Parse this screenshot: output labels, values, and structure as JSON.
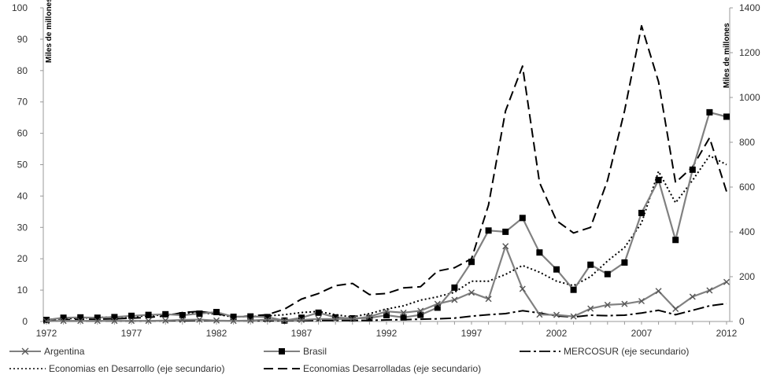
{
  "chart_data": {
    "type": "line",
    "y_left_label": "Miles de millones",
    "y_right_label": "Miles de millones",
    "y_left_ticks": [
      "0",
      "10",
      "20",
      "30",
      "40",
      "50",
      "60",
      "70",
      "80",
      "90",
      "100"
    ],
    "y_right_ticks": [
      "0",
      "200",
      "400",
      "600",
      "800",
      "1000",
      "1200",
      "1400"
    ],
    "x_ticks": [
      "1972",
      "1977",
      "1982",
      "1987",
      "1992",
      "1997",
      "2002",
      "2007",
      "2012"
    ],
    "ylim_left": [
      0,
      100
    ],
    "ylim_right": [
      0,
      1400
    ],
    "grid": false,
    "legend_position": "bottom",
    "x": [
      1972,
      1973,
      1974,
      1975,
      1976,
      1977,
      1978,
      1979,
      1980,
      1981,
      1982,
      1983,
      1984,
      1985,
      1986,
      1987,
      1988,
      1989,
      1990,
      1991,
      1992,
      1993,
      1994,
      1995,
      1996,
      1997,
      1998,
      1999,
      2000,
      2001,
      2002,
      2003,
      2004,
      2005,
      2006,
      2007,
      2008,
      2009,
      2010,
      2011,
      2012
    ],
    "series": [
      {
        "name": "Argentina",
        "axis": "left",
        "color": "#808080",
        "marker": "x",
        "values": [
          0.1,
          0.2,
          0.2,
          0.2,
          0.2,
          0.2,
          0.2,
          0.3,
          0.5,
          0.6,
          0.3,
          0.2,
          0.3,
          0.6,
          0.3,
          0.5,
          0.8,
          0.8,
          0.8,
          1.5,
          3.2,
          2.8,
          3.4,
          5.6,
          6.9,
          9.2,
          7.2,
          24.0,
          10.4,
          2.2,
          2.1,
          1.6,
          4.1,
          5.3,
          5.6,
          6.5,
          9.7,
          4.0,
          7.9,
          9.9,
          12.6
        ]
      },
      {
        "name": "Brasil",
        "axis": "left",
        "color": "#808080",
        "marker": "square",
        "values": [
          0.5,
          1.2,
          1.3,
          1.2,
          1.4,
          1.8,
          2.1,
          2.3,
          2.0,
          2.5,
          3.0,
          1.5,
          1.6,
          1.4,
          0.3,
          1.2,
          2.8,
          1.3,
          1.0,
          1.1,
          2.0,
          1.3,
          2.1,
          4.4,
          10.8,
          19.0,
          29.0,
          28.6,
          33.0,
          22.0,
          16.6,
          10.1,
          18.1,
          15.1,
          18.8,
          34.6,
          45.1,
          26.0,
          48.4,
          66.7,
          65.3
        ]
      },
      {
        "name": "MERCOSUR (eje secundario)",
        "axis": "right",
        "color": "#000000",
        "dash": "14,4,3,4",
        "values": [
          2,
          2,
          2,
          2,
          2,
          2,
          2,
          3,
          4,
          5,
          4,
          3,
          3,
          3,
          3,
          4,
          5,
          5,
          5,
          5,
          7,
          8,
          10,
          12,
          15,
          24,
          30,
          35,
          48,
          38,
          25,
          20,
          28,
          26,
          28,
          38,
          50,
          30,
          50,
          70,
          80
        ]
      },
      {
        "name": "Economias en Desarrollo (eje secundario)",
        "axis": "right",
        "color": "#000000",
        "dash": "2,3",
        "values": [
          10,
          12,
          15,
          18,
          20,
          22,
          25,
          30,
          35,
          40,
          32,
          20,
          22,
          25,
          30,
          40,
          45,
          30,
          20,
          35,
          55,
          70,
          95,
          110,
          130,
          180,
          180,
          210,
          250,
          220,
          180,
          160,
          200,
          270,
          330,
          440,
          670,
          530,
          630,
          740,
          700
        ]
      },
      {
        "name": "Economias Desarrolladas (eje secundario)",
        "axis": "right",
        "color": "#000000",
        "dash": "12,6",
        "values": [
          5,
          8,
          10,
          10,
          12,
          15,
          18,
          25,
          40,
          45,
          35,
          20,
          25,
          30,
          55,
          100,
          125,
          160,
          170,
          120,
          125,
          150,
          155,
          225,
          240,
          280,
          520,
          940,
          1140,
          620,
          450,
          395,
          420,
          630,
          940,
          1320,
          1070,
          620,
          690,
          820,
          580
        ]
      }
    ]
  }
}
